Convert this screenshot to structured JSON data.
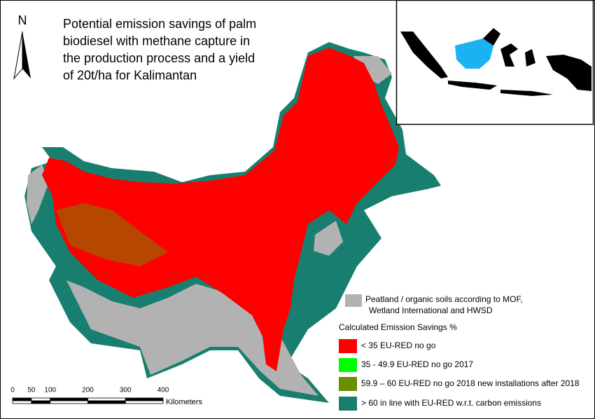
{
  "title_lines": [
    "Potential emission savings of palm",
    "biodiesel with methane capture in",
    "the production process and a yield",
    "of 20t/ha for Kalimantan"
  ],
  "north": "N",
  "peatland": {
    "lines": [
      "Peatland / organic soils according to MOF,",
      "Wetland International and HWSD"
    ],
    "color": "#b2b2b2"
  },
  "legend": {
    "title": "Calculated Emission Savings %",
    "items": [
      {
        "label": "< 35 EU-RED no go",
        "color": "#ff0000"
      },
      {
        "label": "35 - 49.9 EU-RED no go 2017",
        "color": "#00ff00"
      },
      {
        "label": "59.9 – 60 EU-RED no go 2018 new installations after 2018",
        "color": "#6b8e00"
      },
      {
        "label": "> 60 in line with EU-RED w.r.t. carbon emissions",
        "color": "#187f70"
      }
    ]
  },
  "scale": {
    "ticks": [
      0,
      50,
      100,
      200,
      300,
      400
    ],
    "unit": "Kilometers"
  }
}
